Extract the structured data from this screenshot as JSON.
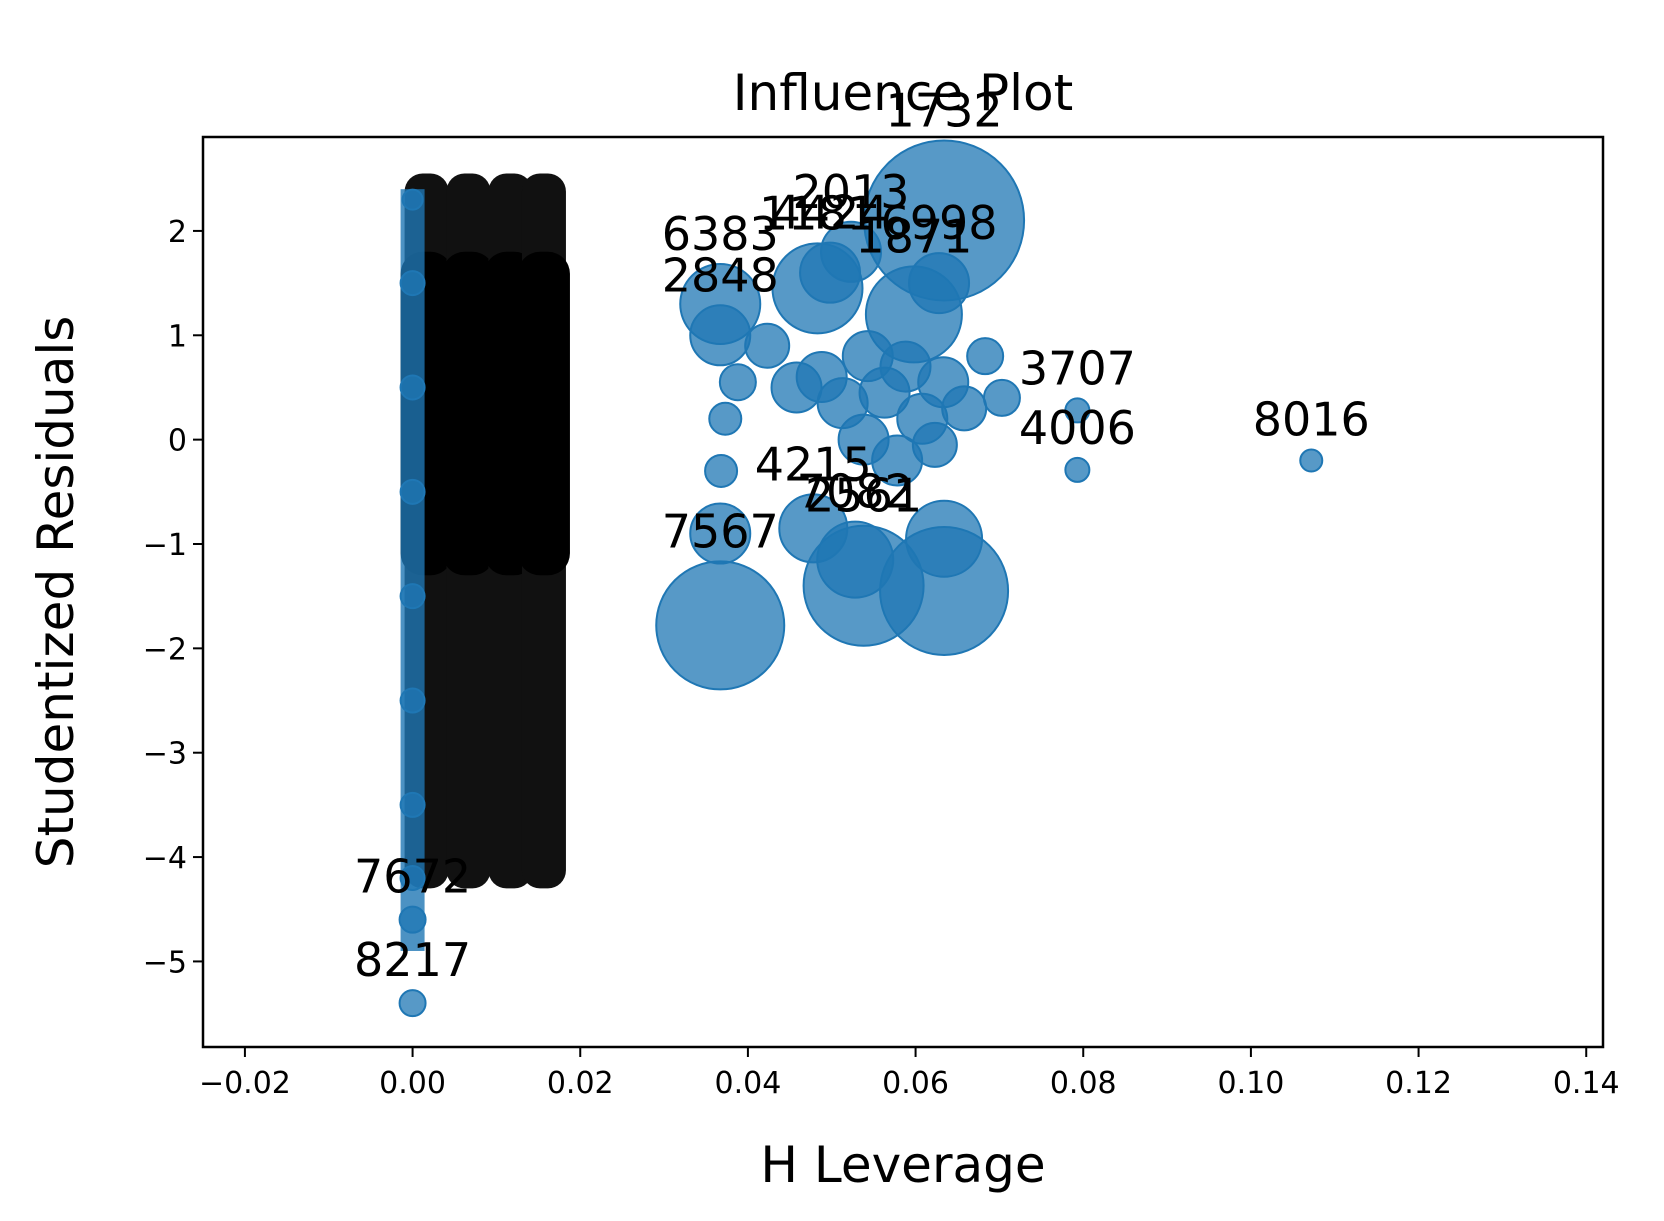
{
  "chart_data": {
    "type": "scatter",
    "title": "Influence Plot",
    "xlabel": "H Leverage",
    "ylabel": "Studentized Residuals",
    "xlim": [
      -0.025,
      0.142
    ],
    "ylim": [
      -5.82,
      2.9
    ],
    "x_ticks": [
      -0.02,
      0.0,
      0.02,
      0.04,
      0.06,
      0.08,
      0.1,
      0.12,
      0.14
    ],
    "x_tick_labels": [
      "−0.02",
      "0.00",
      "0.02",
      "0.04",
      "0.06",
      "0.08",
      "0.10",
      "0.12",
      "0.14"
    ],
    "y_ticks": [
      -5,
      -4,
      -3,
      -2,
      -1,
      0,
      1,
      2
    ],
    "y_tick_labels": [
      "−5",
      "−4",
      "−3",
      "−2",
      "−1",
      "0",
      "1",
      "2"
    ],
    "grid": false,
    "marker_color": "#1f77b4",
    "points": [
      {
        "x": 0.0634,
        "y": 2.1,
        "size": 80,
        "label": "1732"
      },
      {
        "x": 0.0,
        "y": -5.4,
        "size": 13,
        "label": "8217"
      },
      {
        "x": 0.0,
        "y": -4.6,
        "size": 13,
        "label": "7672"
      },
      {
        "x": 0.1072,
        "y": -0.2,
        "size": 11,
        "label": "8016"
      },
      {
        "x": 0.0793,
        "y": -0.29,
        "size": 12,
        "label": "4006"
      },
      {
        "x": 0.0793,
        "y": 0.28,
        "size": 12,
        "label": "3707"
      },
      {
        "x": 0.0367,
        "y": -1.78,
        "size": 64,
        "label": "7567"
      },
      {
        "x": 0.0634,
        "y": -1.45,
        "size": 64,
        "label": ""
      },
      {
        "x": 0.0538,
        "y": -1.4,
        "size": 60,
        "label": "2561"
      },
      {
        "x": 0.0598,
        "y": 1.2,
        "size": 48,
        "label": "1871"
      },
      {
        "x": 0.0634,
        "y": -0.95,
        "size": 38,
        "label": ""
      },
      {
        "x": 0.0528,
        "y": -1.15,
        "size": 38,
        "label": "7082"
      },
      {
        "x": 0.0483,
        "y": 1.45,
        "size": 45,
        "label": "1181"
      },
      {
        "x": 0.0367,
        "y": 1.3,
        "size": 40,
        "label": "6383"
      },
      {
        "x": 0.0367,
        "y": 1.0,
        "size": 30,
        "label": "2848"
      },
      {
        "x": 0.0367,
        "y": -0.9,
        "size": 30,
        "label": ""
      },
      {
        "x": 0.0498,
        "y": 1.6,
        "size": 30,
        "label": "4424"
      },
      {
        "x": 0.0523,
        "y": 1.8,
        "size": 30,
        "label": "2013"
      },
      {
        "x": 0.0628,
        "y": 1.5,
        "size": 30,
        "label": "6998"
      },
      {
        "x": 0.0478,
        "y": -0.85,
        "size": 34,
        "label": "4215"
      },
      {
        "x": 0.0423,
        "y": 0.9,
        "size": 22,
        "label": ""
      },
      {
        "x": 0.0458,
        "y": 0.5,
        "size": 25,
        "label": ""
      },
      {
        "x": 0.0488,
        "y": 0.6,
        "size": 25,
        "label": ""
      },
      {
        "x": 0.0513,
        "y": 0.35,
        "size": 25,
        "label": ""
      },
      {
        "x": 0.0543,
        "y": 0.8,
        "size": 25,
        "label": ""
      },
      {
        "x": 0.0563,
        "y": 0.45,
        "size": 25,
        "label": ""
      },
      {
        "x": 0.0588,
        "y": 0.7,
        "size": 25,
        "label": ""
      },
      {
        "x": 0.0608,
        "y": 0.2,
        "size": 25,
        "label": ""
      },
      {
        "x": 0.0633,
        "y": 0.55,
        "size": 25,
        "label": ""
      },
      {
        "x": 0.0658,
        "y": 0.3,
        "size": 22,
        "label": ""
      },
      {
        "x": 0.0538,
        "y": 0.0,
        "size": 25,
        "label": ""
      },
      {
        "x": 0.0578,
        "y": -0.2,
        "size": 25,
        "label": ""
      },
      {
        "x": 0.0623,
        "y": -0.05,
        "size": 22,
        "label": ""
      },
      {
        "x": 0.0683,
        "y": 0.8,
        "size": 18,
        "label": ""
      },
      {
        "x": 0.0703,
        "y": 0.4,
        "size": 18,
        "label": ""
      },
      {
        "x": 0.0388,
        "y": 0.55,
        "size": 18,
        "label": ""
      },
      {
        "x": 0.0373,
        "y": 0.2,
        "size": 16,
        "label": ""
      },
      {
        "x": 0.0368,
        "y": -0.3,
        "size": 16,
        "label": ""
      },
      {
        "x": 0.0,
        "y": 2.3,
        "size": 10,
        "label": ""
      },
      {
        "x": 0.0,
        "y": 1.5,
        "size": 12,
        "label": ""
      },
      {
        "x": 0.0,
        "y": 0.5,
        "size": 12,
        "label": ""
      },
      {
        "x": 0.0,
        "y": -0.5,
        "size": 12,
        "label": ""
      },
      {
        "x": 0.0,
        "y": -1.5,
        "size": 12,
        "label": ""
      },
      {
        "x": 0.0,
        "y": -2.5,
        "size": 12,
        "label": ""
      },
      {
        "x": 0.0,
        "y": -3.5,
        "size": 12,
        "label": ""
      },
      {
        "x": 0.0,
        "y": -4.2,
        "size": 12,
        "label": ""
      }
    ]
  }
}
